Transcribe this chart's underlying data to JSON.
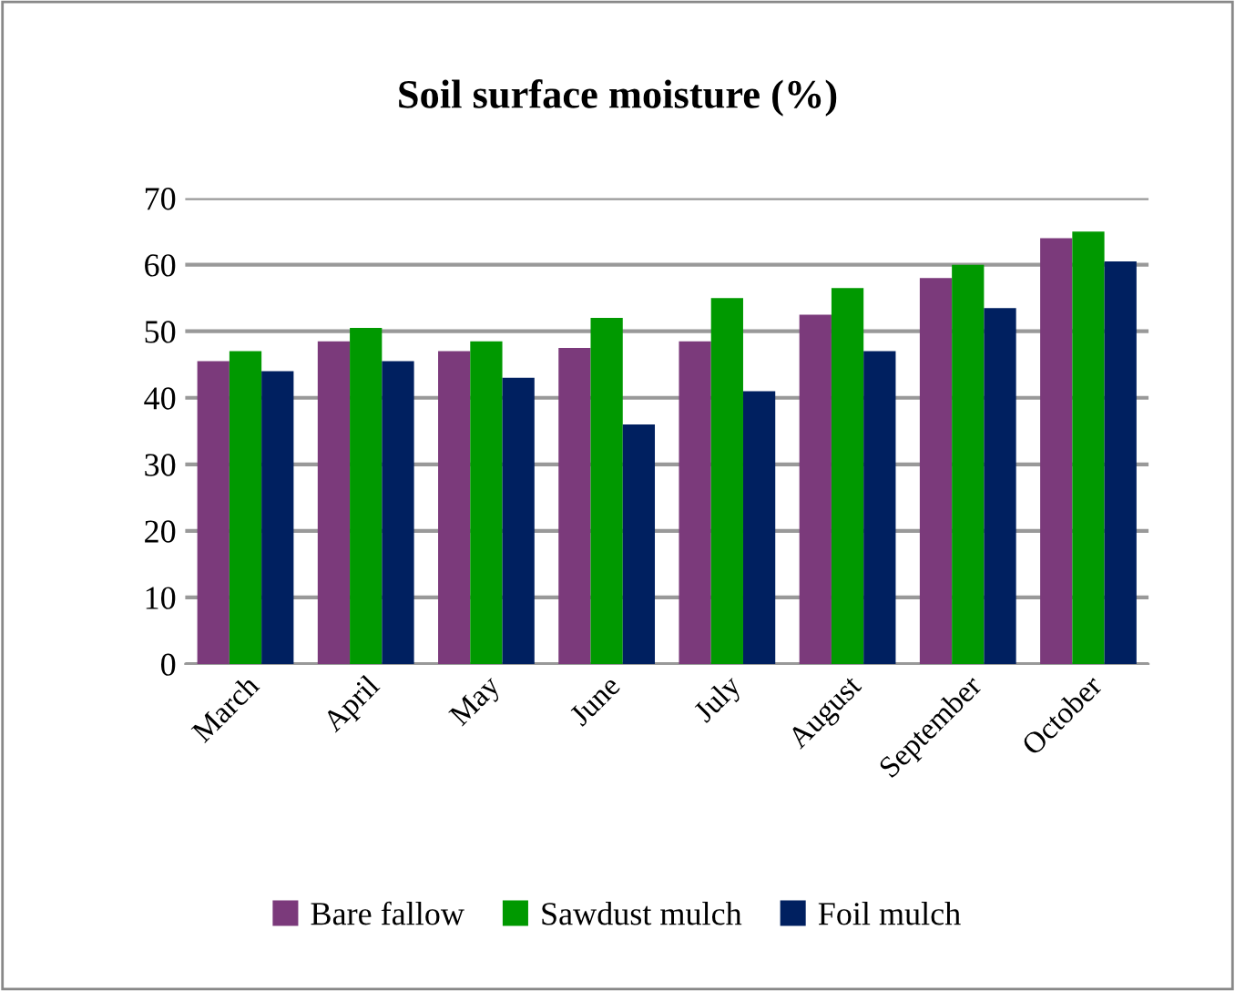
{
  "chart_data": {
    "type": "bar",
    "title": "Soil surface moisture (%)",
    "categories": [
      "March",
      "April",
      "May",
      "June",
      "July",
      "August",
      "September",
      "October"
    ],
    "series": [
      {
        "name": "Bare fallow",
        "color": "#7b3a7b",
        "values": [
          45.5,
          48.5,
          47,
          47.5,
          48.5,
          52.5,
          58,
          64
        ]
      },
      {
        "name": "Sawdust mulch",
        "color": "#009900",
        "values": [
          47,
          50.5,
          48.5,
          52,
          55,
          56.5,
          60,
          65
        ]
      },
      {
        "name": "Foil mulch",
        "color": "#002060",
        "values": [
          44,
          45.5,
          43,
          36,
          41,
          47,
          53.5,
          60.5
        ]
      }
    ],
    "ylim": [
      0,
      70
    ],
    "yticks": [
      0,
      10,
      20,
      30,
      40,
      50,
      60,
      70
    ],
    "grid": "y",
    "legend": "bottom"
  }
}
